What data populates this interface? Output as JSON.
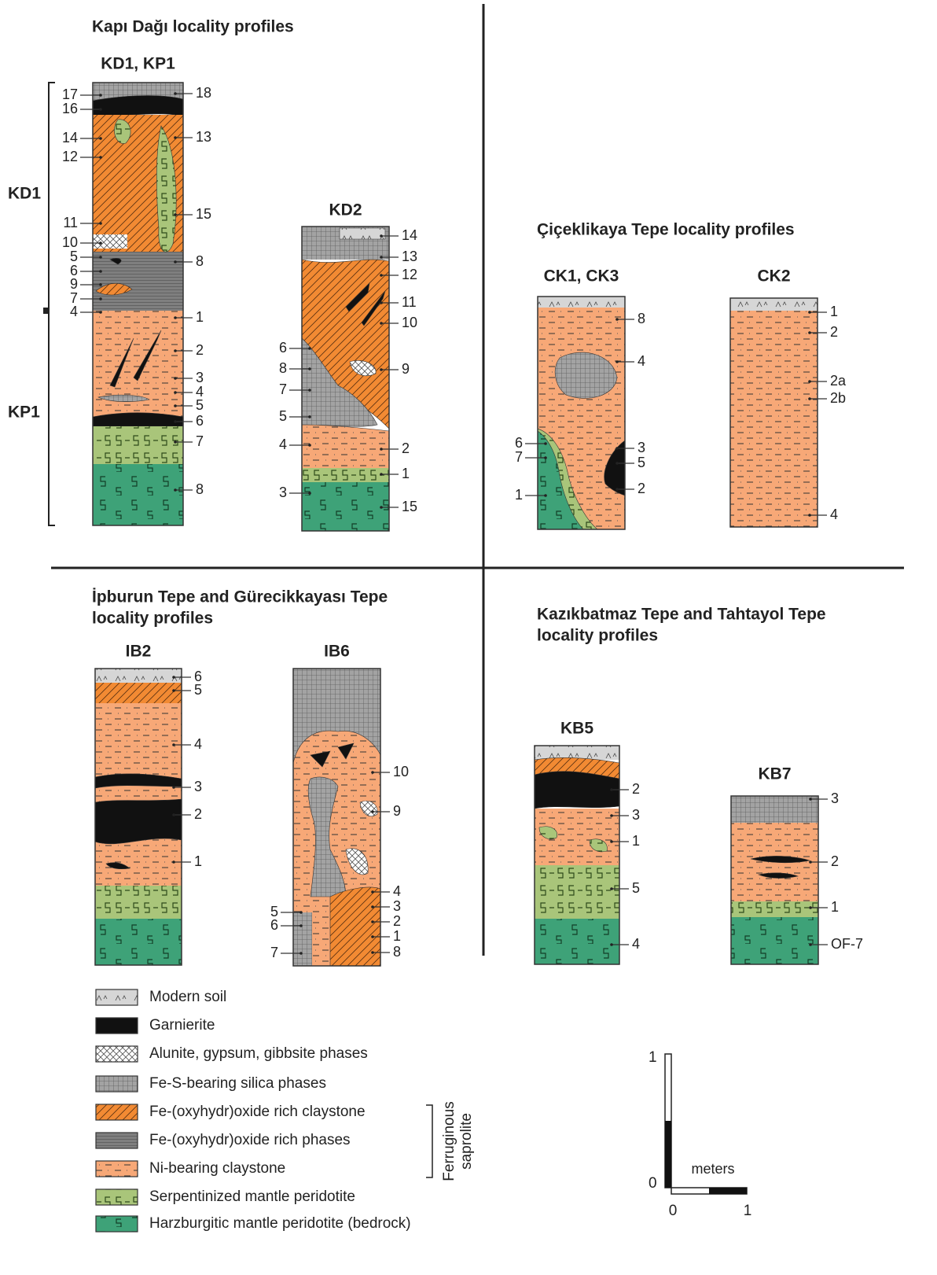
{
  "panels": [
    {
      "title": [
        "Kapı Dağı locality profiles"
      ],
      "side_labels": [
        "KD1",
        "KP1"
      ],
      "columns": [
        {
          "name": "KD1, KP1",
          "left": [
            "17",
            "16",
            "14",
            "12",
            "11",
            "10",
            "5",
            "6",
            "9",
            "7",
            "4"
          ],
          "right": [
            "18",
            "13",
            "15",
            "8",
            "1",
            "2",
            "3",
            "4",
            "5",
            "6",
            "7",
            "8"
          ]
        },
        {
          "name": "KD2",
          "left": [
            "6",
            "8",
            "7",
            "5",
            "4",
            "3"
          ],
          "right": [
            "14",
            "13",
            "12",
            "11",
            "10",
            "9",
            "2",
            "1",
            "15"
          ]
        }
      ]
    },
    {
      "title": [
        "Çiçeklikaya Tepe locality profiles"
      ],
      "columns": [
        {
          "name": "CK1, CK3",
          "left": [
            "6",
            "7",
            "1"
          ],
          "right": [
            "8",
            "4",
            "3",
            "5",
            "2"
          ]
        },
        {
          "name": "CK2",
          "left": [],
          "right": [
            "1",
            "2",
            "2a",
            "2b",
            "4"
          ]
        }
      ]
    },
    {
      "title": [
        "İpburun Tepe and Gürecikkayası Tepe",
        "locality profiles"
      ],
      "columns": [
        {
          "name": "IB2",
          "left": [],
          "right": [
            "6",
            "5",
            "4",
            "3",
            "2",
            "1"
          ]
        },
        {
          "name": "IB6",
          "left": [
            "5",
            "6",
            "7"
          ],
          "right": [
            "10",
            "9",
            "4",
            "3",
            "2",
            "1",
            "8"
          ]
        }
      ]
    },
    {
      "title": [
        "Kazıkbatmaz Tepe and Tahtayol Tepe",
        "locality profiles"
      ],
      "columns": [
        {
          "name": "KB5",
          "left": [],
          "right": [
            "2",
            "3",
            "1",
            "5",
            "4"
          ]
        },
        {
          "name": "KB7",
          "left": [],
          "right": [
            "3",
            "2",
            "1",
            "OF-7"
          ]
        }
      ]
    }
  ],
  "legend": {
    "items": [
      "Modern soil",
      "Garnierite",
      "Alunite, gypsum, gibbsite phases",
      "Fe-S-bearing silica phases",
      "Fe-(oxyhydr)oxide rich claystone",
      "Fe-(oxyhydr)oxide rich phases",
      "Ni-bearing claystone",
      "Serpentinized mantle peridotite",
      "Harzburgitic mantle peridotite (bedrock)"
    ],
    "bracket_label": [
      "Ferruginous",
      "saprolite"
    ]
  },
  "scale": {
    "unit": "meters",
    "y_labels": [
      "1",
      "0"
    ],
    "x_labels": [
      "0",
      "1"
    ]
  }
}
